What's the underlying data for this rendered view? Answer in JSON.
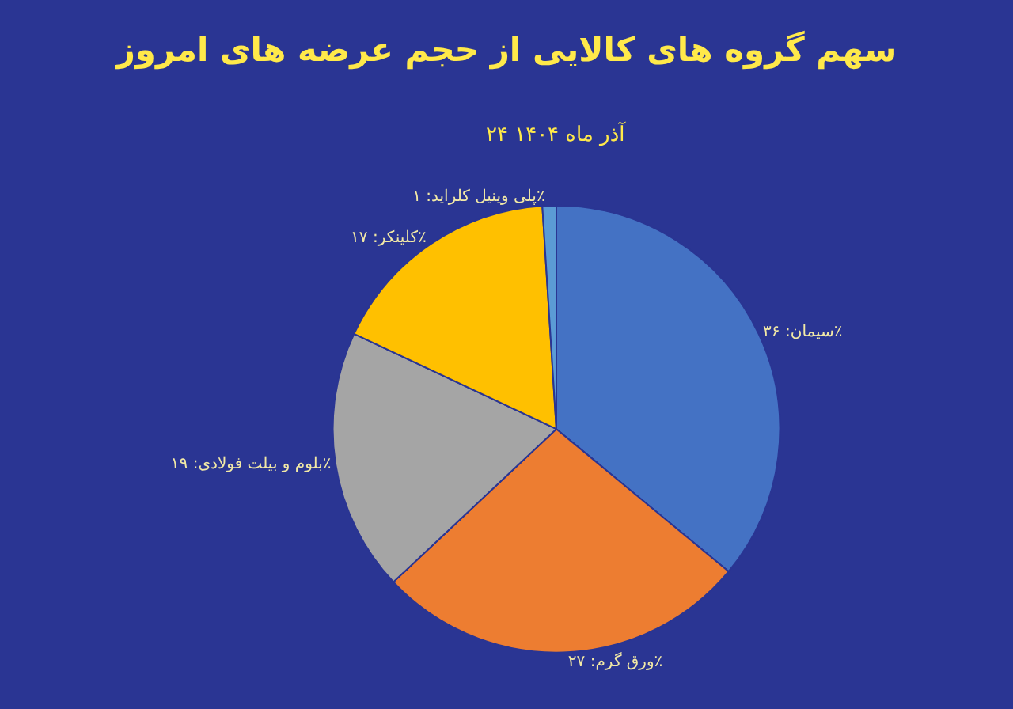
{
  "chart_data": {
    "type": "pie",
    "title": "سهم گروه های کالایی از حجم عرضه های امروز",
    "subtitle": "۲۴ آذر ماه ۱۴۰۴",
    "categories": [
      "سیمان",
      "ورق گرم",
      "بلوم و بیلت فولادی",
      "کلینکر",
      "پلی وینیل کلراید"
    ],
    "values": [
      36,
      27,
      19,
      17,
      1
    ],
    "value_labels": [
      "۳۶٪",
      "۲۷٪",
      "۱۹٪",
      "۱۷٪",
      "۱٪"
    ],
    "colors": [
      "#4472c4",
      "#ed7d31",
      "#a5a5a5",
      "#ffc000",
      "#5b9bd5"
    ],
    "legend": false
  }
}
